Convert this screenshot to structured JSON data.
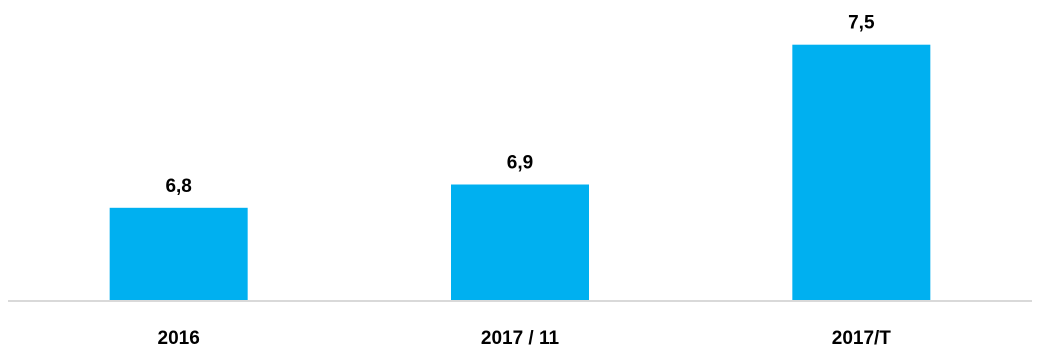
{
  "chart_data": {
    "type": "bar",
    "categories": [
      "2016",
      "2017 / 11",
      "2017/T"
    ],
    "values": [
      6.8,
      6.9,
      7.5
    ],
    "value_labels": [
      "6,8",
      "6,9",
      "7,5"
    ],
    "title": "",
    "xlabel": "",
    "ylabel": "",
    "ylim": [
      6.4,
      7.6
    ],
    "grid": false,
    "legend": "none",
    "bar_color": "#00B0F0",
    "axis_color": "#D9D9D9"
  }
}
